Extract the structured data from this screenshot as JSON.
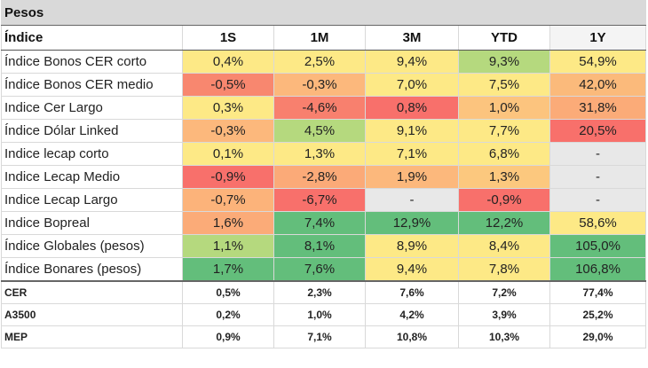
{
  "title": "Pesos",
  "headers": [
    "Índice",
    "1S",
    "1M",
    "3M",
    "YTD",
    "1Y"
  ],
  "rows": [
    {
      "label": "Índice Bonos CER corto",
      "cells": [
        {
          "v": "0,4%",
          "c": "#fde986"
        },
        {
          "v": "2,5%",
          "c": "#fde986"
        },
        {
          "v": "9,4%",
          "c": "#fde986"
        },
        {
          "v": "9,3%",
          "c": "#b5d97e"
        },
        {
          "v": "54,9%",
          "c": "#fde986"
        }
      ]
    },
    {
      "label": "Índice Bonos CER medio",
      "cells": [
        {
          "v": "-0,5%",
          "c": "#f8876f"
        },
        {
          "v": "-0,3%",
          "c": "#fcb87c"
        },
        {
          "v": "7,0%",
          "c": "#fde986"
        },
        {
          "v": "7,5%",
          "c": "#fde986"
        },
        {
          "v": "42,0%",
          "c": "#fbba7b"
        }
      ]
    },
    {
      "label": "Indice Cer Largo",
      "cells": [
        {
          "v": "0,3%",
          "c": "#fde986"
        },
        {
          "v": "-4,6%",
          "c": "#f8806e"
        },
        {
          "v": "0,8%",
          "c": "#f8706b"
        },
        {
          "v": "1,0%",
          "c": "#fcc47e"
        },
        {
          "v": "31,8%",
          "c": "#fbab78"
        }
      ]
    },
    {
      "label": "Índice Dólar Linked",
      "cells": [
        {
          "v": "-0,3%",
          "c": "#fcb87c"
        },
        {
          "v": "4,5%",
          "c": "#b5d97e"
        },
        {
          "v": "9,1%",
          "c": "#fde986"
        },
        {
          "v": "7,7%",
          "c": "#fde986"
        },
        {
          "v": "20,5%",
          "c": "#f8706b"
        }
      ]
    },
    {
      "label": "Indice lecap corto",
      "cells": [
        {
          "v": "0,1%",
          "c": "#fde986"
        },
        {
          "v": "1,3%",
          "c": "#fde986"
        },
        {
          "v": "7,1%",
          "c": "#fde986"
        },
        {
          "v": "6,8%",
          "c": "#fde986"
        },
        {
          "v": "-",
          "c": "#e8e8e8"
        }
      ]
    },
    {
      "label": "Indice Lecap Medio",
      "cells": [
        {
          "v": "-0,9%",
          "c": "#f8706b"
        },
        {
          "v": "-2,8%",
          "c": "#fbaa78"
        },
        {
          "v": "1,9%",
          "c": "#fcb87c"
        },
        {
          "v": "1,3%",
          "c": "#fcc87e"
        },
        {
          "v": "-",
          "c": "#e8e8e8"
        }
      ]
    },
    {
      "label": "Indice Lecap Largo",
      "cells": [
        {
          "v": "-0,7%",
          "c": "#fcb37a"
        },
        {
          "v": "-6,7%",
          "c": "#f8706b"
        },
        {
          "v": "-",
          "c": "#e8e8e8"
        },
        {
          "v": "-0,9%",
          "c": "#f8706b"
        },
        {
          "v": "-",
          "c": "#e8e8e8"
        }
      ]
    },
    {
      "label": "Indice Bopreal",
      "cells": [
        {
          "v": "1,6%",
          "c": "#fbab78"
        },
        {
          "v": "7,4%",
          "c": "#63be7b"
        },
        {
          "v": "12,9%",
          "c": "#63be7b"
        },
        {
          "v": "12,2%",
          "c": "#63be7b"
        },
        {
          "v": "58,6%",
          "c": "#fde986"
        }
      ]
    },
    {
      "label": "Índice Globales (pesos)",
      "cells": [
        {
          "v": "1,1%",
          "c": "#b5d97e"
        },
        {
          "v": "8,1%",
          "c": "#63be7b"
        },
        {
          "v": "8,9%",
          "c": "#fde986"
        },
        {
          "v": "8,4%",
          "c": "#fde986"
        },
        {
          "v": "105,0%",
          "c": "#63be7b"
        }
      ]
    },
    {
      "label": "Índice Bonares (pesos)",
      "cells": [
        {
          "v": "1,7%",
          "c": "#63be7b"
        },
        {
          "v": "7,6%",
          "c": "#63be7b"
        },
        {
          "v": "9,4%",
          "c": "#fde986"
        },
        {
          "v": "7,8%",
          "c": "#fde986"
        },
        {
          "v": "106,8%",
          "c": "#63be7b"
        }
      ]
    }
  ],
  "benchmarks": [
    {
      "label": "CER",
      "values": [
        "0,5%",
        "2,3%",
        "7,6%",
        "7,2%",
        "77,4%"
      ]
    },
    {
      "label": "A3500",
      "values": [
        "0,2%",
        "1,0%",
        "4,2%",
        "3,9%",
        "25,2%"
      ]
    },
    {
      "label": "MEP",
      "values": [
        "0,9%",
        "7,1%",
        "10,8%",
        "10,3%",
        "29,0%"
      ]
    }
  ]
}
